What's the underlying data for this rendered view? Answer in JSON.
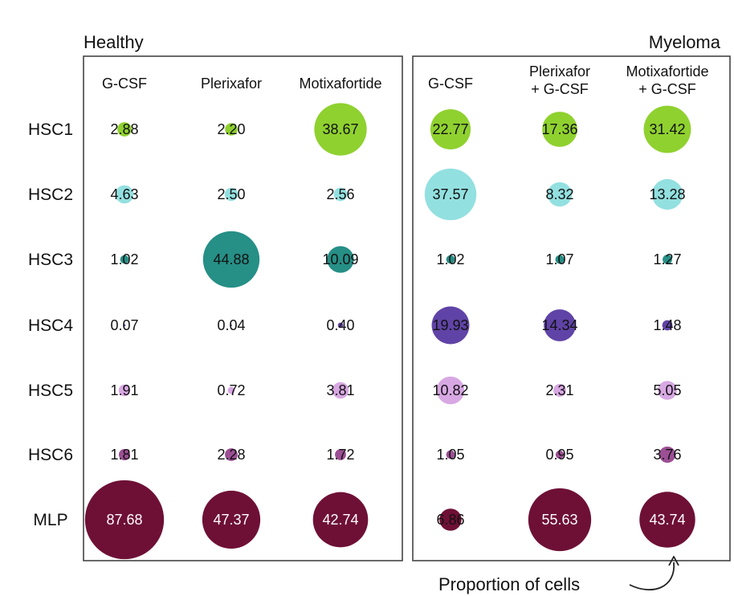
{
  "chart_data": {
    "type": "bubble-matrix",
    "note": "Proportion of cells",
    "rows": [
      "HSC1",
      "HSC2",
      "HSC3",
      "HSC4",
      "HSC5",
      "HSC6",
      "MLP"
    ],
    "row_colors": {
      "HSC1": "#8fd12f",
      "HSC2": "#93e0e0",
      "HSC3": "#268f86",
      "HSC4": "#6043a6",
      "HSC5": "#d8a8e3",
      "HSC6": "#9c4f94",
      "MLP": "#6e1036"
    },
    "groups": [
      {
        "name": "Healthy",
        "columns": [
          {
            "label_lines": [
              "G-CSF"
            ],
            "values": [
              2.88,
              4.63,
              1.02,
              0.07,
              1.91,
              1.81,
              87.68
            ]
          },
          {
            "label_lines": [
              "Plerixafor"
            ],
            "values": [
              2.2,
              2.5,
              44.88,
              0.04,
              0.72,
              2.28,
              47.37
            ]
          },
          {
            "label_lines": [
              "Motixafortide"
            ],
            "values": [
              38.67,
              2.56,
              10.09,
              0.4,
              3.81,
              1.72,
              42.74
            ]
          }
        ]
      },
      {
        "name": "Myeloma",
        "columns": [
          {
            "label_lines": [
              "G-CSF"
            ],
            "values": [
              22.77,
              37.57,
              1.02,
              19.93,
              10.82,
              1.05,
              6.86
            ]
          },
          {
            "label_lines": [
              "Plerixafor",
              "+ G-CSF"
            ],
            "values": [
              17.36,
              8.32,
              1.07,
              14.34,
              2.31,
              0.95,
              55.63
            ]
          },
          {
            "label_lines": [
              "Motixafortide",
              "+ G-CSF"
            ],
            "values": [
              31.42,
              13.28,
              1.27,
              1.48,
              5.05,
              3.76,
              43.74
            ]
          }
        ]
      }
    ]
  }
}
